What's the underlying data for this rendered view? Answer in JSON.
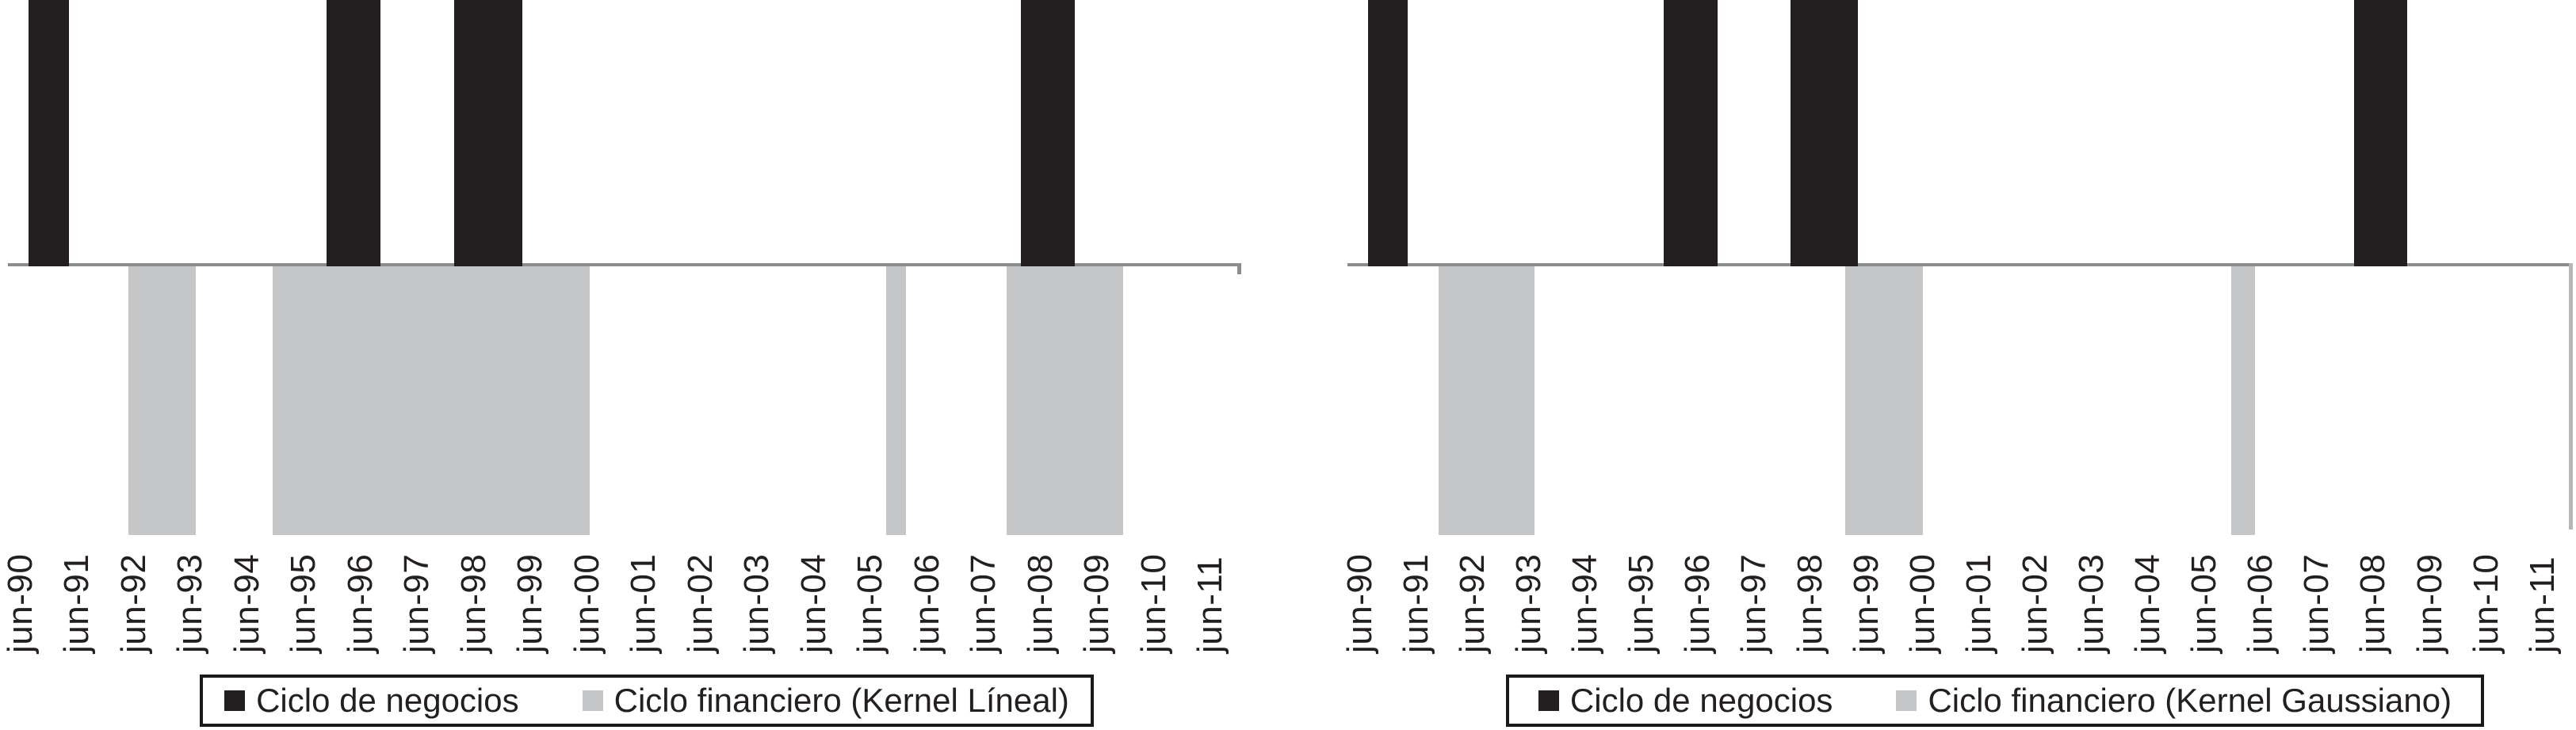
{
  "colors": {
    "background": "#ffffff",
    "business_bar": "#231f20",
    "financial_bar": "#c5c6c8",
    "axis_line": "#8a8c8e",
    "axis_right_border": "#b4b6b8",
    "text": "#231f20",
    "legend_border": "#1a1a1a"
  },
  "chart_data": [
    {
      "type": "bar",
      "title": "",
      "orientation": "vertical",
      "baseline": 0,
      "ylim": [
        -1,
        1
      ],
      "grid": false,
      "legend_position": "bottom",
      "x_label_rotation_deg": -90,
      "categories": [
        "jun-90",
        "jun-91",
        "jun-92",
        "jun-93",
        "jun-94",
        "jun-95",
        "jun-96",
        "jun-97",
        "jun-98",
        "jun-99",
        "jun-00",
        "jun-01",
        "jun-02",
        "jun-03",
        "jun-04",
        "jun-05",
        "jun-06",
        "jun-07",
        "jun-08",
        "jun-09",
        "jun-10",
        "jun-11"
      ],
      "series": [
        {
          "name": "Ciclo de negocios",
          "color": "#231f20",
          "value": 1,
          "direction": "up",
          "blocks": [
            {
              "period": "sep-90 a mar-91",
              "start": 0.15,
              "end": 0.85
            },
            {
              "period": "dic-95 a sep-96",
              "start": 5.4,
              "end": 6.35
            },
            {
              "period": "mar-98 a mar-99",
              "start": 7.65,
              "end": 8.85
            },
            {
              "period": "mar-08 a dic-08",
              "start": 17.65,
              "end": 18.6
            }
          ]
        },
        {
          "name": "Ciclo financiero (Kernel Líneal)",
          "color": "#c5c6c8",
          "value": -1,
          "direction": "down",
          "blocks": [
            {
              "period": "jun-92 a jun-93",
              "start": 1.9,
              "end": 3.1
            },
            {
              "period": "dic-94 a jun-00",
              "start": 4.45,
              "end": 10.05
            },
            {
              "period": "sep-05 a dic-05",
              "start": 15.28,
              "end": 15.62
            },
            {
              "period": "dic-07 a dic-09",
              "start": 17.4,
              "end": 19.45
            }
          ]
        }
      ]
    },
    {
      "type": "bar",
      "title": "",
      "orientation": "vertical",
      "baseline": 0,
      "ylim": [
        -1,
        1
      ],
      "grid": false,
      "legend_position": "bottom",
      "x_label_rotation_deg": -90,
      "categories": [
        "jun-90",
        "jun-91",
        "jun-92",
        "jun-93",
        "jun-94",
        "jun-95",
        "jun-96",
        "jun-97",
        "jun-98",
        "jun-99",
        "jun-00",
        "jun-01",
        "jun-02",
        "jun-03",
        "jun-04",
        "jun-05",
        "jun-06",
        "jun-07",
        "jun-08",
        "jun-09",
        "jun-10",
        "jun-11"
      ],
      "series": [
        {
          "name": "Ciclo de negocios",
          "color": "#231f20",
          "value": 1,
          "direction": "up",
          "blocks": [
            {
              "period": "sep-90 a mar-91",
              "start": 0.15,
              "end": 0.85
            },
            {
              "period": "dic-95 a sep-96",
              "start": 5.4,
              "end": 6.35
            },
            {
              "period": "mar-98 a mar-99",
              "start": 7.65,
              "end": 8.85
            },
            {
              "period": "mar-08 a dic-08",
              "start": 17.65,
              "end": 18.6
            }
          ]
        },
        {
          "name": "Ciclo financiero (Kernel Gaussiano)",
          "color": "#c5c6c8",
          "value": -1,
          "direction": "down",
          "blocks": [
            {
              "period": "dic-91 a jun-93",
              "start": 1.4,
              "end": 3.1
            },
            {
              "period": "mar-99 a jun-00",
              "start": 8.62,
              "end": 10.0
            },
            {
              "period": "dic-05 a mar-06",
              "start": 15.48,
              "end": 15.9
            }
          ]
        }
      ]
    }
  ]
}
